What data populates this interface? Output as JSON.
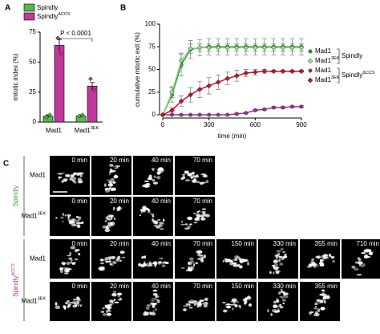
{
  "panel_a": {
    "label": "A",
    "chart_data": {
      "type": "bar",
      "y_label": "mitotic index (%)",
      "categories": [
        "Mad1",
        {
          "text": "Mad1",
          "sup": "3EK"
        }
      ],
      "series": [
        {
          "name": "Spindly",
          "color": "#56b847",
          "values": [
            5,
            5
          ],
          "errors": [
            1,
            1
          ],
          "points": [
            [
              4,
              6
            ],
            [
              5,
              6
            ]
          ]
        },
        {
          "name": {
            "text": "Spindly",
            "sup": "ΔCCS"
          },
          "color": "#c0399a",
          "values": [
            64,
            30
          ],
          "errors": [
            5,
            3
          ],
          "points": [
            [
              70,
              57
            ],
            [
              36,
              27
            ]
          ]
        }
      ],
      "ylim": [
        0,
        75
      ],
      "yticks": [
        0,
        25,
        50,
        75
      ],
      "annotation": "P < 0.0001"
    }
  },
  "panel_b": {
    "label": "B",
    "chart_data": {
      "type": "line",
      "x_label": "time (min)",
      "y_label": "cumulative mitotic exit (%)",
      "x": [
        0,
        60,
        120,
        180,
        240,
        300,
        360,
        420,
        480,
        540,
        600,
        660,
        720,
        780,
        840,
        900
      ],
      "series": [
        {
          "name": "Mad1",
          "color": "#2f9e2f",
          "marker": "circle",
          "values": [
            0,
            22,
            55,
            72,
            74,
            75,
            75,
            75,
            75,
            75,
            75,
            75,
            75,
            75,
            75,
            75
          ],
          "errors": [
            0,
            8,
            12,
            10,
            9,
            9,
            9,
            9,
            9,
            9,
            9,
            9,
            9,
            9,
            9,
            9
          ]
        },
        {
          "name": {
            "text": "Mad1",
            "sup": "3EK"
          },
          "color": "#8fe08a",
          "marker": "diamond",
          "values": [
            0,
            25,
            60,
            73,
            74,
            74,
            74,
            74,
            74,
            74,
            74,
            74,
            74,
            74,
            74,
            74
          ],
          "errors": [
            0,
            6,
            8,
            5,
            4,
            4,
            4,
            4,
            4,
            4,
            4,
            4,
            4,
            4,
            4,
            4
          ]
        },
        {
          "name": "Mad1",
          "color": "#a0308f",
          "marker": "circle",
          "values": [
            0,
            0,
            0,
            0,
            0,
            0,
            0,
            0,
            1,
            2,
            5,
            6,
            8,
            8,
            9,
            9
          ],
          "errors": [
            0,
            0,
            0,
            0,
            0,
            0,
            0,
            0,
            1,
            1,
            1,
            1,
            1,
            1,
            1,
            1
          ]
        },
        {
          "name": {
            "text": "Mad1",
            "sup": "3EK"
          },
          "color": "#c8102e",
          "marker": "diamond",
          "values": [
            0,
            5,
            15,
            22,
            28,
            32,
            36,
            40,
            43,
            46,
            47,
            48,
            48,
            48,
            48,
            48
          ],
          "errors": [
            0,
            3,
            6,
            8,
            9,
            9,
            8,
            7,
            6,
            4,
            3,
            2,
            1,
            1,
            1,
            1
          ]
        }
      ],
      "legend_groups": [
        "Spindly",
        {
          "text": "Spindly",
          "sup": "ΔCCS"
        }
      ],
      "xlim": [
        0,
        900
      ],
      "xticks": [
        0,
        300,
        600,
        900
      ],
      "ylim": [
        0,
        100
      ],
      "yticks": [
        0,
        25,
        50,
        75,
        100
      ]
    }
  },
  "panel_c": {
    "label": "C",
    "groups": [
      {
        "label": "Spindly",
        "color": "#3a9e2f",
        "rows": [
          {
            "label": "Mad1",
            "times": [
              "0 min",
              "20 min",
              "40 min",
              "70 min"
            ]
          },
          {
            "label": {
              "text": "Mad1",
              "sup": "3EK"
            },
            "times": [
              "0 min",
              "20 min",
              "40 min",
              "70 min"
            ]
          }
        ]
      },
      {
        "label": {
          "text": "Spindly",
          "sup": "ΔCCS"
        },
        "color": "#b0338f",
        "rows": [
          {
            "label": "Mad1",
            "times": [
              "0 min",
              "20 min",
              "40 min",
              "70 min",
              "150 min",
              "330 min",
              "355 min",
              "710 min"
            ]
          },
          {
            "label": {
              "text": "Mad1",
              "sup": "3EK"
            },
            "times": [
              "0 min",
              "20 min",
              "40 min",
              "70 min",
              "150 min",
              "330 min",
              "355 min"
            ]
          }
        ]
      }
    ]
  }
}
